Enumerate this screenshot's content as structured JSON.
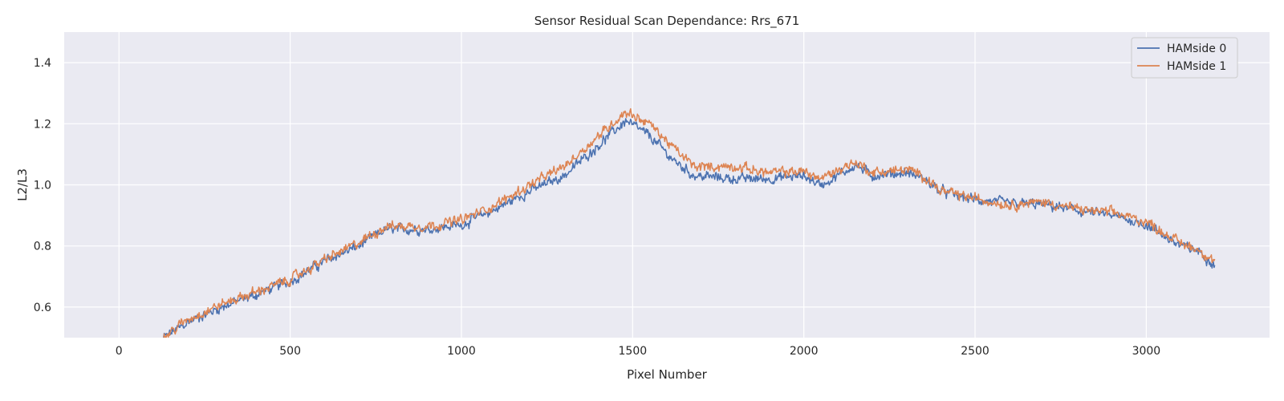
{
  "chart_data": {
    "type": "line",
    "title": "Sensor Residual Scan Dependance: Rrs_671",
    "xlabel": "Pixel Number",
    "ylabel": "L2/L3",
    "xlim": [
      -160,
      3360
    ],
    "ylim": [
      0.5,
      1.5
    ],
    "xticks": [
      0,
      500,
      1000,
      1500,
      2000,
      2500,
      3000
    ],
    "xtick_labels": [
      "0",
      "500",
      "1000",
      "1500",
      "2000",
      "2500",
      "3000"
    ],
    "yticks": [
      0.6,
      0.8,
      1.0,
      1.2,
      1.4
    ],
    "ytick_labels": [
      "0.6",
      "0.8",
      "1.0",
      "1.2",
      "1.4"
    ],
    "grid": true,
    "legend_position": "top-right",
    "series": [
      {
        "name": "HAMside 0",
        "color": "#4c72b0",
        "noise": 0.012,
        "x": [
          130,
          200,
          300,
          400,
          500,
          600,
          700,
          780,
          900,
          1000,
          1100,
          1200,
          1300,
          1400,
          1480,
          1550,
          1620,
          1680,
          1800,
          1900,
          2000,
          2050,
          2100,
          2150,
          2200,
          2300,
          2350,
          2400,
          2500,
          2600,
          2700,
          2800,
          2900,
          3000,
          3100,
          3150,
          3200
        ],
        "y": [
          0.5,
          0.55,
          0.6,
          0.64,
          0.685,
          0.75,
          0.8,
          0.855,
          0.855,
          0.87,
          0.92,
          0.98,
          1.03,
          1.13,
          1.21,
          1.16,
          1.08,
          1.03,
          1.02,
          1.02,
          1.03,
          1.0,
          1.03,
          1.065,
          1.03,
          1.04,
          1.02,
          0.98,
          0.95,
          0.94,
          0.935,
          0.915,
          0.9,
          0.87,
          0.8,
          0.785,
          0.74
        ]
      },
      {
        "name": "HAMside 1",
        "color": "#dd8452",
        "noise": 0.012,
        "x": [
          130,
          200,
          300,
          400,
          500,
          600,
          700,
          780,
          900,
          1000,
          1100,
          1200,
          1300,
          1400,
          1480,
          1550,
          1620,
          1680,
          1800,
          1900,
          2000,
          2050,
          2100,
          2150,
          2200,
          2300,
          2350,
          2400,
          2500,
          2600,
          2700,
          2800,
          2900,
          3000,
          3100,
          3150,
          3200
        ],
        "y": [
          0.5,
          0.56,
          0.61,
          0.65,
          0.69,
          0.755,
          0.81,
          0.865,
          0.865,
          0.885,
          0.935,
          1.0,
          1.06,
          1.16,
          1.24,
          1.2,
          1.12,
          1.06,
          1.06,
          1.04,
          1.045,
          1.02,
          1.05,
          1.075,
          1.04,
          1.05,
          1.03,
          0.98,
          0.955,
          0.935,
          0.945,
          0.92,
          0.91,
          0.88,
          0.81,
          0.79,
          0.75
        ]
      }
    ]
  }
}
